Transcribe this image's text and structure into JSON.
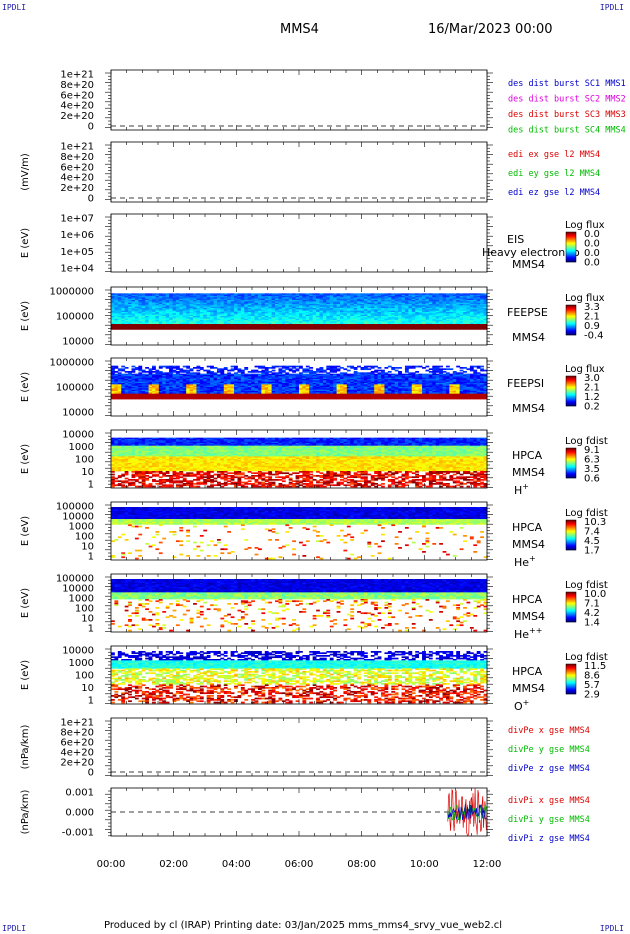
{
  "corners": {
    "tl": "IPDLI",
    "tr": "IPDLI",
    "bl": "IPDLI",
    "br": "IPDLI"
  },
  "header": {
    "spacecraft": "MMS4",
    "date": "16/Mar/2023 00:00"
  },
  "footer": {
    "text": "Produced by cl (IRAP)   Printing date: 03/Jan/2025   mms_mms4_srvy_vue_web2.cl"
  },
  "colors": {
    "red": "#dd0000",
    "magenta": "#dd00dd",
    "green": "#00bb00",
    "blue": "#0000cc"
  },
  "time_axis": {
    "ticks": [
      "00:00",
      "02:00",
      "04:00",
      "06:00",
      "08:00",
      "10:00",
      "12:00"
    ]
  },
  "chart_data": [
    {
      "type": "line",
      "ylabel": "",
      "yticks": [
        "1e+21",
        "8e+20",
        "6e+20",
        "4e+20",
        "2e+20",
        "0"
      ],
      "legend": [
        {
          "text": "des dist burst SC1 MMS1",
          "color": "blue"
        },
        {
          "text": "des dist burst SC2 MMS2",
          "color": "magenta"
        },
        {
          "text": "des dist burst SC3 MMS3",
          "color": "red"
        },
        {
          "text": "des dist burst SC4 MMS4",
          "color": "green"
        }
      ],
      "series": []
    },
    {
      "type": "line",
      "ylabel": "(mV/m)",
      "yticks": [
        "1e+21",
        "8e+20",
        "6e+20",
        "4e+20",
        "2e+20",
        "0"
      ],
      "legend": [
        {
          "text": "edi ex gse l2 MMS4",
          "color": "red"
        },
        {
          "text": "edi ey gse l2 MMS4",
          "color": "green"
        },
        {
          "text": "edi ez gse l2 MMS4",
          "color": "blue"
        }
      ],
      "series": []
    },
    {
      "type": "heatmap",
      "ylabel": "E (eV)",
      "yticks": [
        "1e+07",
        "1e+06",
        "1e+05",
        "1e+04"
      ],
      "side": [
        "EIS",
        "MMS4"
      ],
      "overlay": "Heavy electron to",
      "cbar_title": "Log flux",
      "cbar_ticks": [
        "0.0",
        "0.0",
        "0.0",
        "0.0"
      ],
      "status": "no data"
    },
    {
      "type": "heatmap",
      "ylabel": "E (eV)",
      "yticks": [
        "1000000",
        "100000",
        "10000"
      ],
      "side": [
        "FEEPSE",
        "MMS4"
      ],
      "cbar_title": "Log flux",
      "cbar_ticks": [
        "3.3",
        "2.1",
        "0.9",
        "-0.4"
      ]
    },
    {
      "type": "heatmap",
      "ylabel": "E (eV)",
      "yticks": [
        "1000000",
        "100000",
        "10000"
      ],
      "side": [
        "FEEPSI",
        "MMS4"
      ],
      "cbar_title": "Log flux",
      "cbar_ticks": [
        "3.0",
        "2.1",
        "1.2",
        "0.2"
      ]
    },
    {
      "type": "heatmap",
      "ylabel": "E (eV)",
      "yticks": [
        "10000",
        "1000",
        "100",
        "10",
        "1"
      ],
      "side": [
        "HPCA",
        "MMS4"
      ],
      "species": "H",
      "charge": "+",
      "cbar_title": "Log fdist",
      "cbar_ticks": [
        "9.1",
        "6.3",
        "3.5",
        "0.6"
      ]
    },
    {
      "type": "heatmap",
      "ylabel": "E (eV)",
      "yticks": [
        "100000",
        "10000",
        "1000",
        "100",
        "10",
        "1"
      ],
      "side": [
        "HPCA",
        "MMS4"
      ],
      "species": "He",
      "charge": "+",
      "cbar_title": "Log fdist",
      "cbar_ticks": [
        "10.3",
        "7.4",
        "4.5",
        "1.7"
      ]
    },
    {
      "type": "heatmap",
      "ylabel": "E (eV)",
      "yticks": [
        "100000",
        "10000",
        "1000",
        "100",
        "10",
        "1"
      ],
      "side": [
        "HPCA",
        "MMS4"
      ],
      "species": "He",
      "charge": "++",
      "cbar_title": "Log fdist",
      "cbar_ticks": [
        "10.0",
        "7.1",
        "4.2",
        "1.4"
      ]
    },
    {
      "type": "heatmap",
      "ylabel": "E (eV)",
      "yticks": [
        "10000",
        "1000",
        "100",
        "10",
        "1"
      ],
      "side": [
        "HPCA",
        "MMS4"
      ],
      "species": "O",
      "charge": "+",
      "cbar_title": "Log fdist",
      "cbar_ticks": [
        "11.5",
        "8.6",
        "5.7",
        "2.9"
      ]
    },
    {
      "type": "line",
      "ylabel": "(nPa/km)",
      "yticks": [
        "1e+21",
        "8e+20",
        "6e+20",
        "4e+20",
        "2e+20",
        "0"
      ],
      "legend": [
        {
          "text": "divPe x gse MMS4",
          "color": "red"
        },
        {
          "text": "divPe y gse MMS4",
          "color": "green"
        },
        {
          "text": "divPe z gse MMS4",
          "color": "blue"
        }
      ],
      "series": []
    },
    {
      "type": "line",
      "ylabel": "(nPa/km)",
      "yticks": [
        "0.001",
        "0.000",
        "-0.001"
      ],
      "legend": [
        {
          "text": "divPi x gse MMS4",
          "color": "red"
        },
        {
          "text": "divPi y gse MMS4",
          "color": "green"
        },
        {
          "text": "divPi z gse MMS4",
          "color": "blue"
        }
      ],
      "series": [
        {
          "name": "divPi x gse MMS4",
          "x_start": "10:45",
          "x_end": "12:00",
          "range": [
            -0.0012,
            0.0012
          ]
        },
        {
          "name": "divPi y gse MMS4",
          "x_start": "10:45",
          "x_end": "12:00",
          "range": [
            -0.0004,
            0.0004
          ]
        },
        {
          "name": "divPi z gse MMS4",
          "x_start": "10:45",
          "x_end": "12:00",
          "range": [
            -0.0004,
            0.0004
          ]
        }
      ]
    }
  ]
}
